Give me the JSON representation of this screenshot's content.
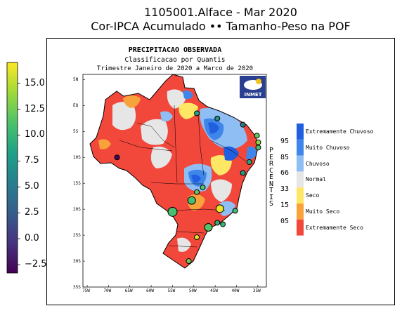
{
  "figure": {
    "title_line1": "1105001.Alface - Mar 2020",
    "title_line2": "Cor-IPCA Acumulado •• Tamanho-Peso na POF"
  },
  "colorbar": {
    "colormap": "viridis",
    "min": -3.3,
    "max": 17.0,
    "ticks": [
      "15.0",
      "12.5",
      "10.0",
      "7.5",
      "5.0",
      "2.5",
      "0.0",
      "−2.5"
    ],
    "tick_values": [
      15.0,
      12.5,
      10.0,
      7.5,
      5.0,
      2.5,
      0.0,
      -2.5
    ]
  },
  "map": {
    "title": "PRECIPITACAO OBSERVADA",
    "subtitle": "Classificacao por Quantis",
    "period": "Trimestre Janeiro de 2020 a Marco de 2020",
    "logo_text": "INMET",
    "lat_labels": [
      "5N",
      "EQ",
      "5S",
      "10S",
      "15S",
      "20S",
      "25S",
      "30S",
      "35S"
    ],
    "lon_labels": [
      "75W",
      "70W",
      "65W",
      "60W",
      "55W",
      "50W",
      "45W",
      "40W",
      "35W"
    ],
    "vertical_label": "PERCENTIS",
    "percentiles": [
      "95",
      "85",
      "66",
      "33",
      "15",
      "05"
    ],
    "legend": [
      {
        "label": "Extremamente Chuvoso",
        "color": "#1f5fe0"
      },
      {
        "label": "Muito Chuvoso",
        "color": "#3f86ea"
      },
      {
        "label": "Chuvoso",
        "color": "#8fbef5"
      },
      {
        "label": "Normal",
        "color": "#e6e6e6"
      },
      {
        "label": "Seco",
        "color": "#ffe766"
      },
      {
        "label": "Muito Seco",
        "color": "#f7a23a"
      },
      {
        "label": "Extremamente Seco",
        "color": "#f2473b"
      }
    ]
  },
  "cities": [
    {
      "lon": -68.0,
      "lat": -10.0,
      "value": -3.0,
      "weight": 1
    },
    {
      "lon": -49.3,
      "lat": -1.5,
      "value": 8.5,
      "weight": 1
    },
    {
      "lon": -44.5,
      "lat": -2.5,
      "value": 7.0,
      "weight": 1
    },
    {
      "lon": -38.5,
      "lat": -3.7,
      "value": 5.5,
      "weight": 1
    },
    {
      "lon": -35.2,
      "lat": -5.8,
      "value": 12.0,
      "weight": 1
    },
    {
      "lon": -34.9,
      "lat": -7.1,
      "value": 13.5,
      "weight": 1
    },
    {
      "lon": -34.9,
      "lat": -8.1,
      "value": 11.0,
      "weight": 1
    },
    {
      "lon": -37.0,
      "lat": -10.9,
      "value": 9.0,
      "weight": 1
    },
    {
      "lon": -38.5,
      "lat": -13.0,
      "value": 8.0,
      "weight": 1
    },
    {
      "lon": -49.3,
      "lat": -16.7,
      "value": 12.0,
      "weight": 1
    },
    {
      "lon": -47.9,
      "lat": -15.8,
      "value": 11.5,
      "weight": 1
    },
    {
      "lon": -50.5,
      "lat": -18.3,
      "value": 11.0,
      "weight": 2
    },
    {
      "lon": -55.0,
      "lat": -20.5,
      "value": 11.0,
      "weight": 3
    },
    {
      "lon": -43.9,
      "lat": -19.9,
      "value": 16.5,
      "weight": 2
    },
    {
      "lon": -40.3,
      "lat": -20.3,
      "value": 10.5,
      "weight": 1
    },
    {
      "lon": -43.2,
      "lat": -22.9,
      "value": 10.0,
      "weight": 1
    },
    {
      "lon": -46.6,
      "lat": -23.5,
      "value": 11.5,
      "weight": 2
    },
    {
      "lon": -44.5,
      "lat": -22.6,
      "value": 9.5,
      "weight": 1
    },
    {
      "lon": -49.3,
      "lat": -25.4,
      "value": 16.0,
      "weight": 1
    },
    {
      "lon": -51.2,
      "lat": -30.0,
      "value": 12.5,
      "weight": 1
    }
  ]
}
